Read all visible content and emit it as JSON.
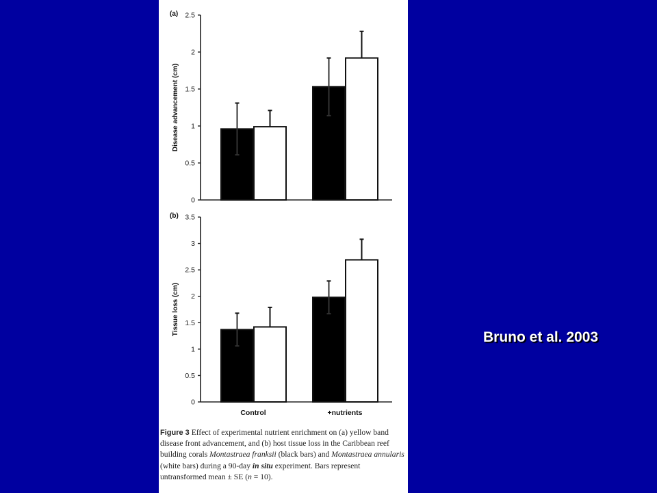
{
  "slide": {
    "background": "#0000a0",
    "citation": "Bruno et al. 2003"
  },
  "chart_data": [
    {
      "type": "bar",
      "panel_label": "(a)",
      "ylabel": "Disease advancement (cm)",
      "ylim": [
        0,
        2.5
      ],
      "yticks": [
        "0",
        "0.5",
        "1",
        "1.5",
        "2",
        "2.5"
      ],
      "categories": [
        "Control",
        "+nutrients"
      ],
      "show_category_labels": false,
      "series": [
        {
          "color": "#000000",
          "values": [
            0.96,
            1.53
          ],
          "errors": [
            0.35,
            0.39
          ]
        },
        {
          "color": "#ffffff",
          "values": [
            0.99,
            1.92
          ],
          "errors": [
            0.22,
            0.36
          ]
        }
      ]
    },
    {
      "type": "bar",
      "panel_label": "(b)",
      "ylabel": "Tissue loss (cm)",
      "ylim": [
        0,
        3.5
      ],
      "yticks": [
        "0",
        "0.5",
        "1",
        "1.5",
        "2",
        "2.5",
        "3",
        "3.5"
      ],
      "categories": [
        "Control",
        "+nutrients"
      ],
      "show_category_labels": true,
      "series": [
        {
          "color": "#000000",
          "values": [
            1.37,
            1.98
          ],
          "errors": [
            0.31,
            0.31
          ]
        },
        {
          "color": "#ffffff",
          "values": [
            1.42,
            2.69
          ],
          "errors": [
            0.37,
            0.39
          ]
        }
      ]
    }
  ],
  "caption": {
    "figure_label": "Figure 3",
    "t1": "  Effect of experimental nutrient enrichment on (a) yellow band disease front advancement, and (b) host tissue loss in the Caribbean reef building corals ",
    "species1": "Montastraea franksii",
    "t2": " (black bars) and ",
    "species2": "Montastraea annularis",
    "t3": " (white bars) during a 90-day ",
    "in_situ": "in situ",
    "t4": " experiment. Bars represent untransformed mean ± SE (",
    "n": "n",
    "t5": " = 10)."
  }
}
